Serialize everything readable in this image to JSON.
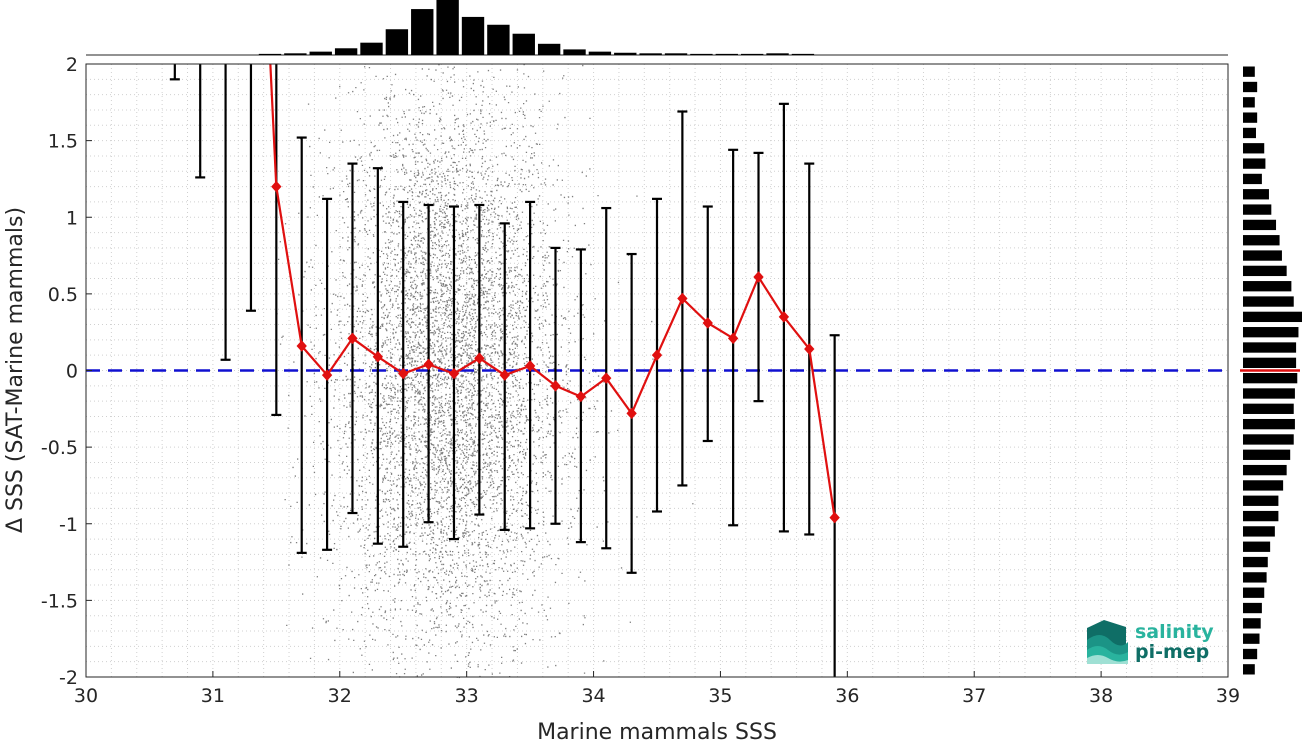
{
  "chart_data": {
    "type": "scatter",
    "xlabel": "Marine mammals SSS",
    "ylabel": "Δ SSS (SAT-Marine mammals)",
    "xlim": [
      30,
      39
    ],
    "ylim": [
      -2,
      2
    ],
    "x_ticks": [
      30,
      31,
      32,
      33,
      34,
      35,
      36,
      37,
      38,
      39
    ],
    "y_ticks": [
      -2,
      -1.5,
      -1,
      -0.5,
      0,
      0.5,
      1,
      1.5,
      2
    ],
    "y_tick_labels": [
      "-2",
      "-1.5",
      "-1",
      "-0.5",
      "0",
      "0.5",
      "1",
      "1.5",
      "2"
    ],
    "grid": "minor dotted",
    "zero_line": {
      "y": 0,
      "style": "dashed",
      "color": "#1010d0"
    },
    "binned_mean": {
      "color": "#e01010",
      "x": [
        31.5,
        31.7,
        31.9,
        32.1,
        32.3,
        32.5,
        32.7,
        32.9,
        33.1,
        33.3,
        33.5,
        33.7,
        33.9,
        34.1,
        34.3,
        34.5,
        34.7,
        34.9,
        35.1,
        35.3,
        35.5,
        35.7,
        35.9
      ],
      "y": [
        1.2,
        0.16,
        -0.03,
        0.21,
        0.09,
        -0.02,
        0.04,
        -0.02,
        0.08,
        -0.03,
        0.03,
        -0.1,
        -0.17,
        -0.05,
        -0.28,
        0.1,
        0.47,
        0.31,
        0.21,
        0.61,
        0.35,
        0.14,
        -0.96
      ]
    },
    "error_bars": {
      "color": "#000000",
      "x": [
        30.7,
        30.9,
        31.1,
        31.3,
        31.5,
        31.7,
        31.9,
        32.1,
        32.3,
        32.5,
        32.7,
        32.9,
        33.1,
        33.3,
        33.5,
        33.7,
        33.9,
        34.1,
        34.3,
        34.5,
        34.7,
        34.9,
        35.1,
        35.3,
        35.5,
        35.7,
        35.9
      ],
      "lower": [
        1.9,
        1.26,
        0.07,
        0.39,
        -0.29,
        -1.19,
        -1.17,
        -0.93,
        -1.13,
        -1.15,
        -0.99,
        -1.1,
        -0.94,
        -1.04,
        -1.03,
        -1.0,
        -1.12,
        -1.16,
        -1.32,
        -0.92,
        -0.75,
        -0.46,
        -1.01,
        -0.2,
        -1.05,
        -1.07,
        -2.0
      ],
      "upper": [
        2.0,
        2.0,
        2.0,
        2.0,
        2.0,
        1.52,
        1.12,
        1.35,
        1.32,
        1.1,
        1.08,
        1.07,
        1.08,
        0.96,
        1.1,
        0.8,
        0.79,
        1.06,
        0.76,
        1.12,
        1.69,
        1.07,
        1.44,
        1.42,
        1.74,
        1.35,
        0.23
      ]
    },
    "top_histogram": {
      "x_centers": [
        31.45,
        31.65,
        31.85,
        32.05,
        32.25,
        32.45,
        32.65,
        32.85,
        33.05,
        33.25,
        33.45,
        33.65,
        33.85,
        34.05,
        34.25,
        34.45,
        34.65,
        34.85,
        35.05,
        35.25,
        35.45,
        35.65
      ],
      "counts": [
        0.02,
        0.03,
        0.06,
        0.12,
        0.22,
        0.46,
        0.82,
        1.0,
        0.68,
        0.54,
        0.38,
        0.2,
        0.1,
        0.06,
        0.04,
        0.03,
        0.03,
        0.02,
        0.02,
        0.02,
        0.03,
        0.02
      ]
    },
    "right_histogram": {
      "y_centers": [
        1.95,
        1.85,
        1.75,
        1.65,
        1.55,
        1.45,
        1.35,
        1.25,
        1.15,
        1.05,
        0.95,
        0.85,
        0.75,
        0.65,
        0.55,
        0.45,
        0.35,
        0.25,
        0.15,
        0.05,
        -0.05,
        -0.15,
        -0.25,
        -0.35,
        -0.45,
        -0.55,
        -0.65,
        -0.75,
        -0.85,
        -0.95,
        -1.05,
        -1.15,
        -1.25,
        -1.35,
        -1.45,
        -1.55,
        -1.65,
        -1.75,
        -1.85,
        -1.95
      ],
      "counts": [
        0.2,
        0.24,
        0.2,
        0.24,
        0.22,
        0.36,
        0.38,
        0.32,
        0.44,
        0.48,
        0.56,
        0.62,
        0.66,
        0.74,
        0.82,
        0.86,
        1.0,
        0.94,
        0.9,
        0.9,
        0.92,
        0.88,
        0.86,
        0.88,
        0.86,
        0.8,
        0.74,
        0.68,
        0.6,
        0.6,
        0.54,
        0.46,
        0.42,
        0.4,
        0.36,
        0.32,
        0.3,
        0.28,
        0.24,
        0.2
      ],
      "zero_marker_color": "#e01010"
    },
    "scatter_color": "#7f7f7f"
  },
  "logo": {
    "line1": "salinity",
    "line2": "pi-mep",
    "color_dark": "#0f6e66",
    "color_light": "#29b39e"
  }
}
